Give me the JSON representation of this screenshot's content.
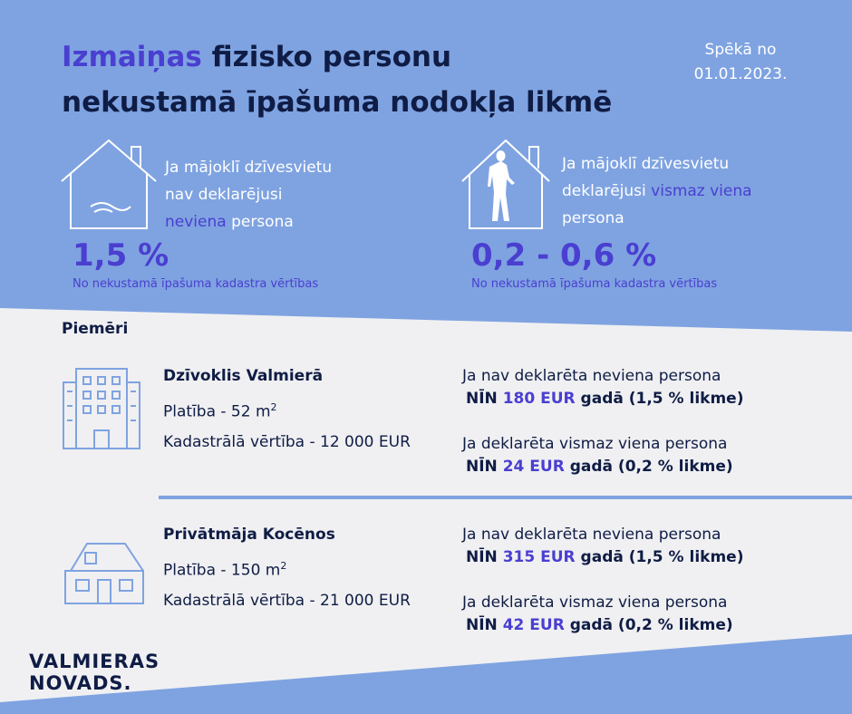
{
  "header": {
    "title_highlight": "Izmaiņas",
    "title_rest": "fizisko personu",
    "title_line2": "nekustamā īpašuma nodokļa likmē",
    "effective_line1": "Spēkā no",
    "effective_line2": "01.01.2023."
  },
  "cases": [
    {
      "line1": "Ja mājoklī dzīvesvietu",
      "line2": "nav deklarējusi",
      "line3_highlight": "neviena",
      "line3_rest": "persona",
      "rate": "1,5 %",
      "note": "No nekustamā īpašuma kadastra vērtības"
    },
    {
      "line1": "Ja mājoklī dzīvesvietu",
      "line2_rest": "deklarējusi",
      "line2_highlight": "vismaz viena",
      "line3": "persona",
      "rate": "0,2 - 0,6 %",
      "note": "No nekustamā īpašuma kadastra vērtības"
    }
  ],
  "examples_label": "Piemēri",
  "examples": [
    {
      "name": "Dzīvoklis Valmierā",
      "area": "Platība - 52 m",
      "area_sup": "2",
      "cadastral": "Kadastrālā vērtība - 12 000 EUR",
      "results": [
        {
          "condition": "Ja nav deklarēta neviena persona",
          "prefix": "NĪN",
          "amount": "180 EUR",
          "suffix": "gadā (1,5 % likme)"
        },
        {
          "condition": "Ja deklarēta vismaz viena persona",
          "prefix": "NĪN",
          "amount": "24 EUR",
          "suffix": "gadā (0,2 % likme)"
        }
      ]
    },
    {
      "name": "Privātmāja Kocēnos",
      "area": "Platība - 150 m",
      "area_sup": "2",
      "cadastral": "Kadastrālā vērtība - 21 000 EUR",
      "results": [
        {
          "condition": "Ja nav deklarēta neviena persona",
          "prefix": "NĪN",
          "amount": "315 EUR",
          "suffix": "gadā (1,5 % likme)"
        },
        {
          "condition": "Ja deklarēta vismaz viena persona",
          "prefix": "NĪN",
          "amount": "42 EUR",
          "suffix": "gadā (0,2 % likme)"
        }
      ]
    }
  ],
  "logo": {
    "line1": "VALMIERAS",
    "line2": "NOVADS"
  }
}
